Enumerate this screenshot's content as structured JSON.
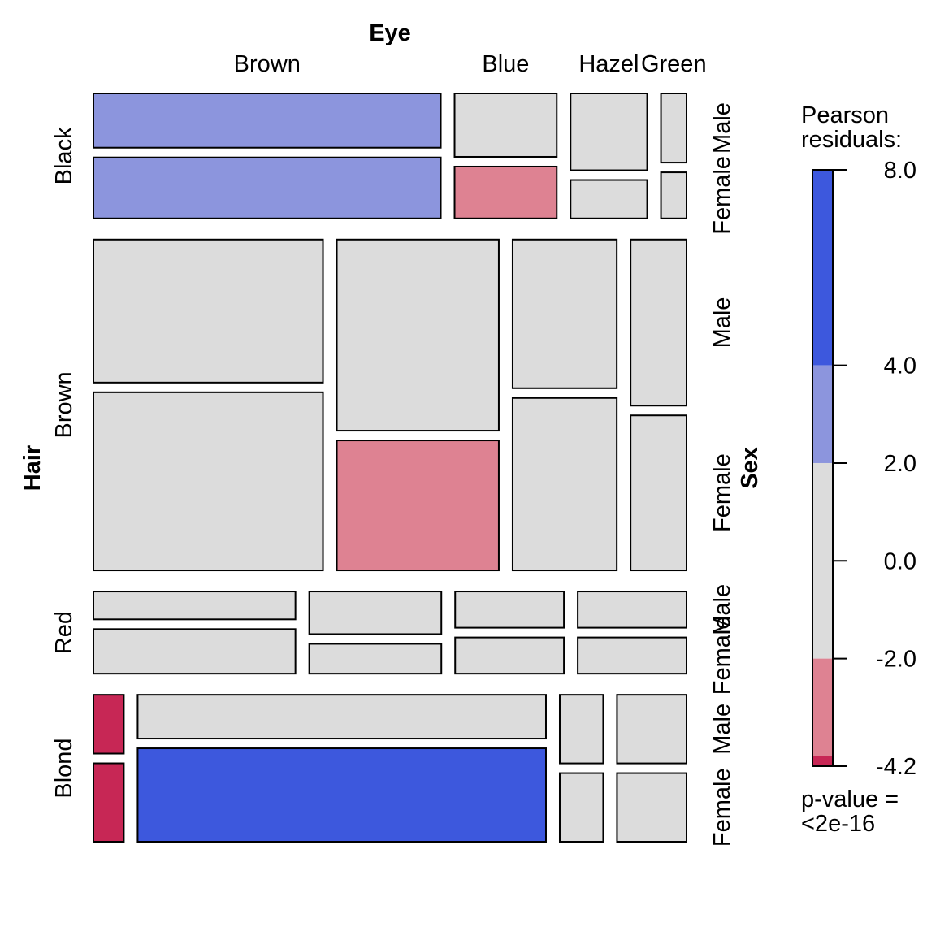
{
  "chart_data": {
    "type": "mosaic",
    "title": "",
    "variables": {
      "column": "Eye",
      "row": "Hair",
      "sub": "Sex"
    },
    "eye_levels": [
      "Brown",
      "Blue",
      "Hazel",
      "Green"
    ],
    "hair_levels": [
      "Black",
      "Brown",
      "Red",
      "Blond"
    ],
    "sex_levels": [
      "Male",
      "Female"
    ],
    "counts": {
      "Black": {
        "Brown": [
          32,
          36
        ],
        "Blue": [
          11,
          9
        ],
        "Hazel": [
          10,
          5
        ],
        "Green": [
          3,
          2
        ]
      },
      "Brown": {
        "Brown": [
          53,
          66
        ],
        "Blue": [
          50,
          34
        ],
        "Hazel": [
          25,
          29
        ],
        "Green": [
          15,
          14
        ]
      },
      "Red": {
        "Brown": [
          10,
          16
        ],
        "Blue": [
          10,
          7
        ],
        "Hazel": [
          7,
          7
        ],
        "Green": [
          7,
          7
        ]
      },
      "Blond": {
        "Brown": [
          3,
          4
        ],
        "Blue": [
          30,
          64
        ],
        "Hazel": [
          5,
          5
        ],
        "Green": [
          8,
          8
        ]
      }
    },
    "shading": {
      "Black": {
        "Brown": [
          "pos_mid",
          "pos_mid"
        ],
        "Blue": [
          "neutral",
          "neg_mid"
        ],
        "Hazel": [
          "neutral",
          "neutral"
        ],
        "Green": [
          "neutral",
          "neutral"
        ]
      },
      "Brown": {
        "Brown": [
          "neutral",
          "neutral"
        ],
        "Blue": [
          "neutral",
          "neg_mid"
        ],
        "Hazel": [
          "neutral",
          "neutral"
        ],
        "Green": [
          "neutral",
          "neutral"
        ]
      },
      "Red": {
        "Brown": [
          "neutral",
          "neutral"
        ],
        "Blue": [
          "neutral",
          "neutral"
        ],
        "Hazel": [
          "neutral",
          "neutral"
        ],
        "Green": [
          "neutral",
          "neutral"
        ]
      },
      "Blond": {
        "Brown": [
          "neg_high",
          "neg_high"
        ],
        "Blue": [
          "neutral",
          "pos_high"
        ],
        "Hazel": [
          "neutral",
          "neutral"
        ],
        "Green": [
          "neutral",
          "neutral"
        ]
      }
    },
    "legend": {
      "title_line1": "Pearson",
      "title_line2": "residuals:",
      "ticks": [
        "8.0",
        "4.0",
        "2.0",
        "0.0",
        "-2.0",
        "-4.2"
      ],
      "tick_values": [
        8.0,
        4.0,
        2.0,
        0.0,
        -2.0,
        -4.2
      ],
      "range": [
        -4.2,
        8.0
      ],
      "bands": [
        {
          "from": 4.0,
          "to": 8.0,
          "color": "#3d58dd"
        },
        {
          "from": 2.0,
          "to": 4.0,
          "color": "#8c95dd"
        },
        {
          "from": -2.0,
          "to": 2.0,
          "color": "#dcdcdc"
        },
        {
          "from": -4.0,
          "to": -2.0,
          "color": "#de8292"
        },
        {
          "from": -4.2,
          "to": -4.0,
          "color": "#c72755"
        }
      ],
      "pvalue_line1": "p-value =",
      "pvalue_line2": "<2e-16"
    },
    "colors": {
      "pos_high": "#3d58dd",
      "pos_mid": "#8c95dd",
      "neutral": "#dcdcdc",
      "neg_mid": "#de8292",
      "neg_high": "#c72755"
    }
  }
}
